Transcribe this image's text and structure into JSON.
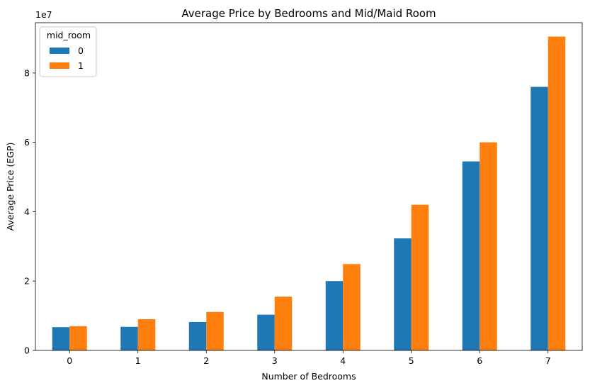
{
  "chart_data": {
    "type": "bar",
    "title": "Average Price by Bedrooms and Mid/Maid Room",
    "xlabel": "Number of Bedrooms",
    "ylabel": "Average Price (EGP)",
    "y_offset_label": "1e7",
    "categories": [
      "0",
      "1",
      "2",
      "3",
      "4",
      "5",
      "6",
      "7"
    ],
    "y_ticks": [
      0,
      20000000,
      40000000,
      60000000,
      80000000
    ],
    "y_tick_labels": [
      "0",
      "2",
      "4",
      "6",
      "8"
    ],
    "ylim": [
      0,
      94500000
    ],
    "legend": {
      "title": "mid_room",
      "position": "top-left"
    },
    "grid": false,
    "series": [
      {
        "name": "0",
        "color": "#1f77b4",
        "values": [
          6700000,
          6800000,
          8200000,
          10300000,
          20000000,
          32300000,
          54500000,
          76000000
        ]
      },
      {
        "name": "1",
        "color": "#ff7f0e",
        "values": [
          7000000,
          9000000,
          11100000,
          15500000,
          24900000,
          42000000,
          60000000,
          90500000
        ]
      }
    ]
  }
}
